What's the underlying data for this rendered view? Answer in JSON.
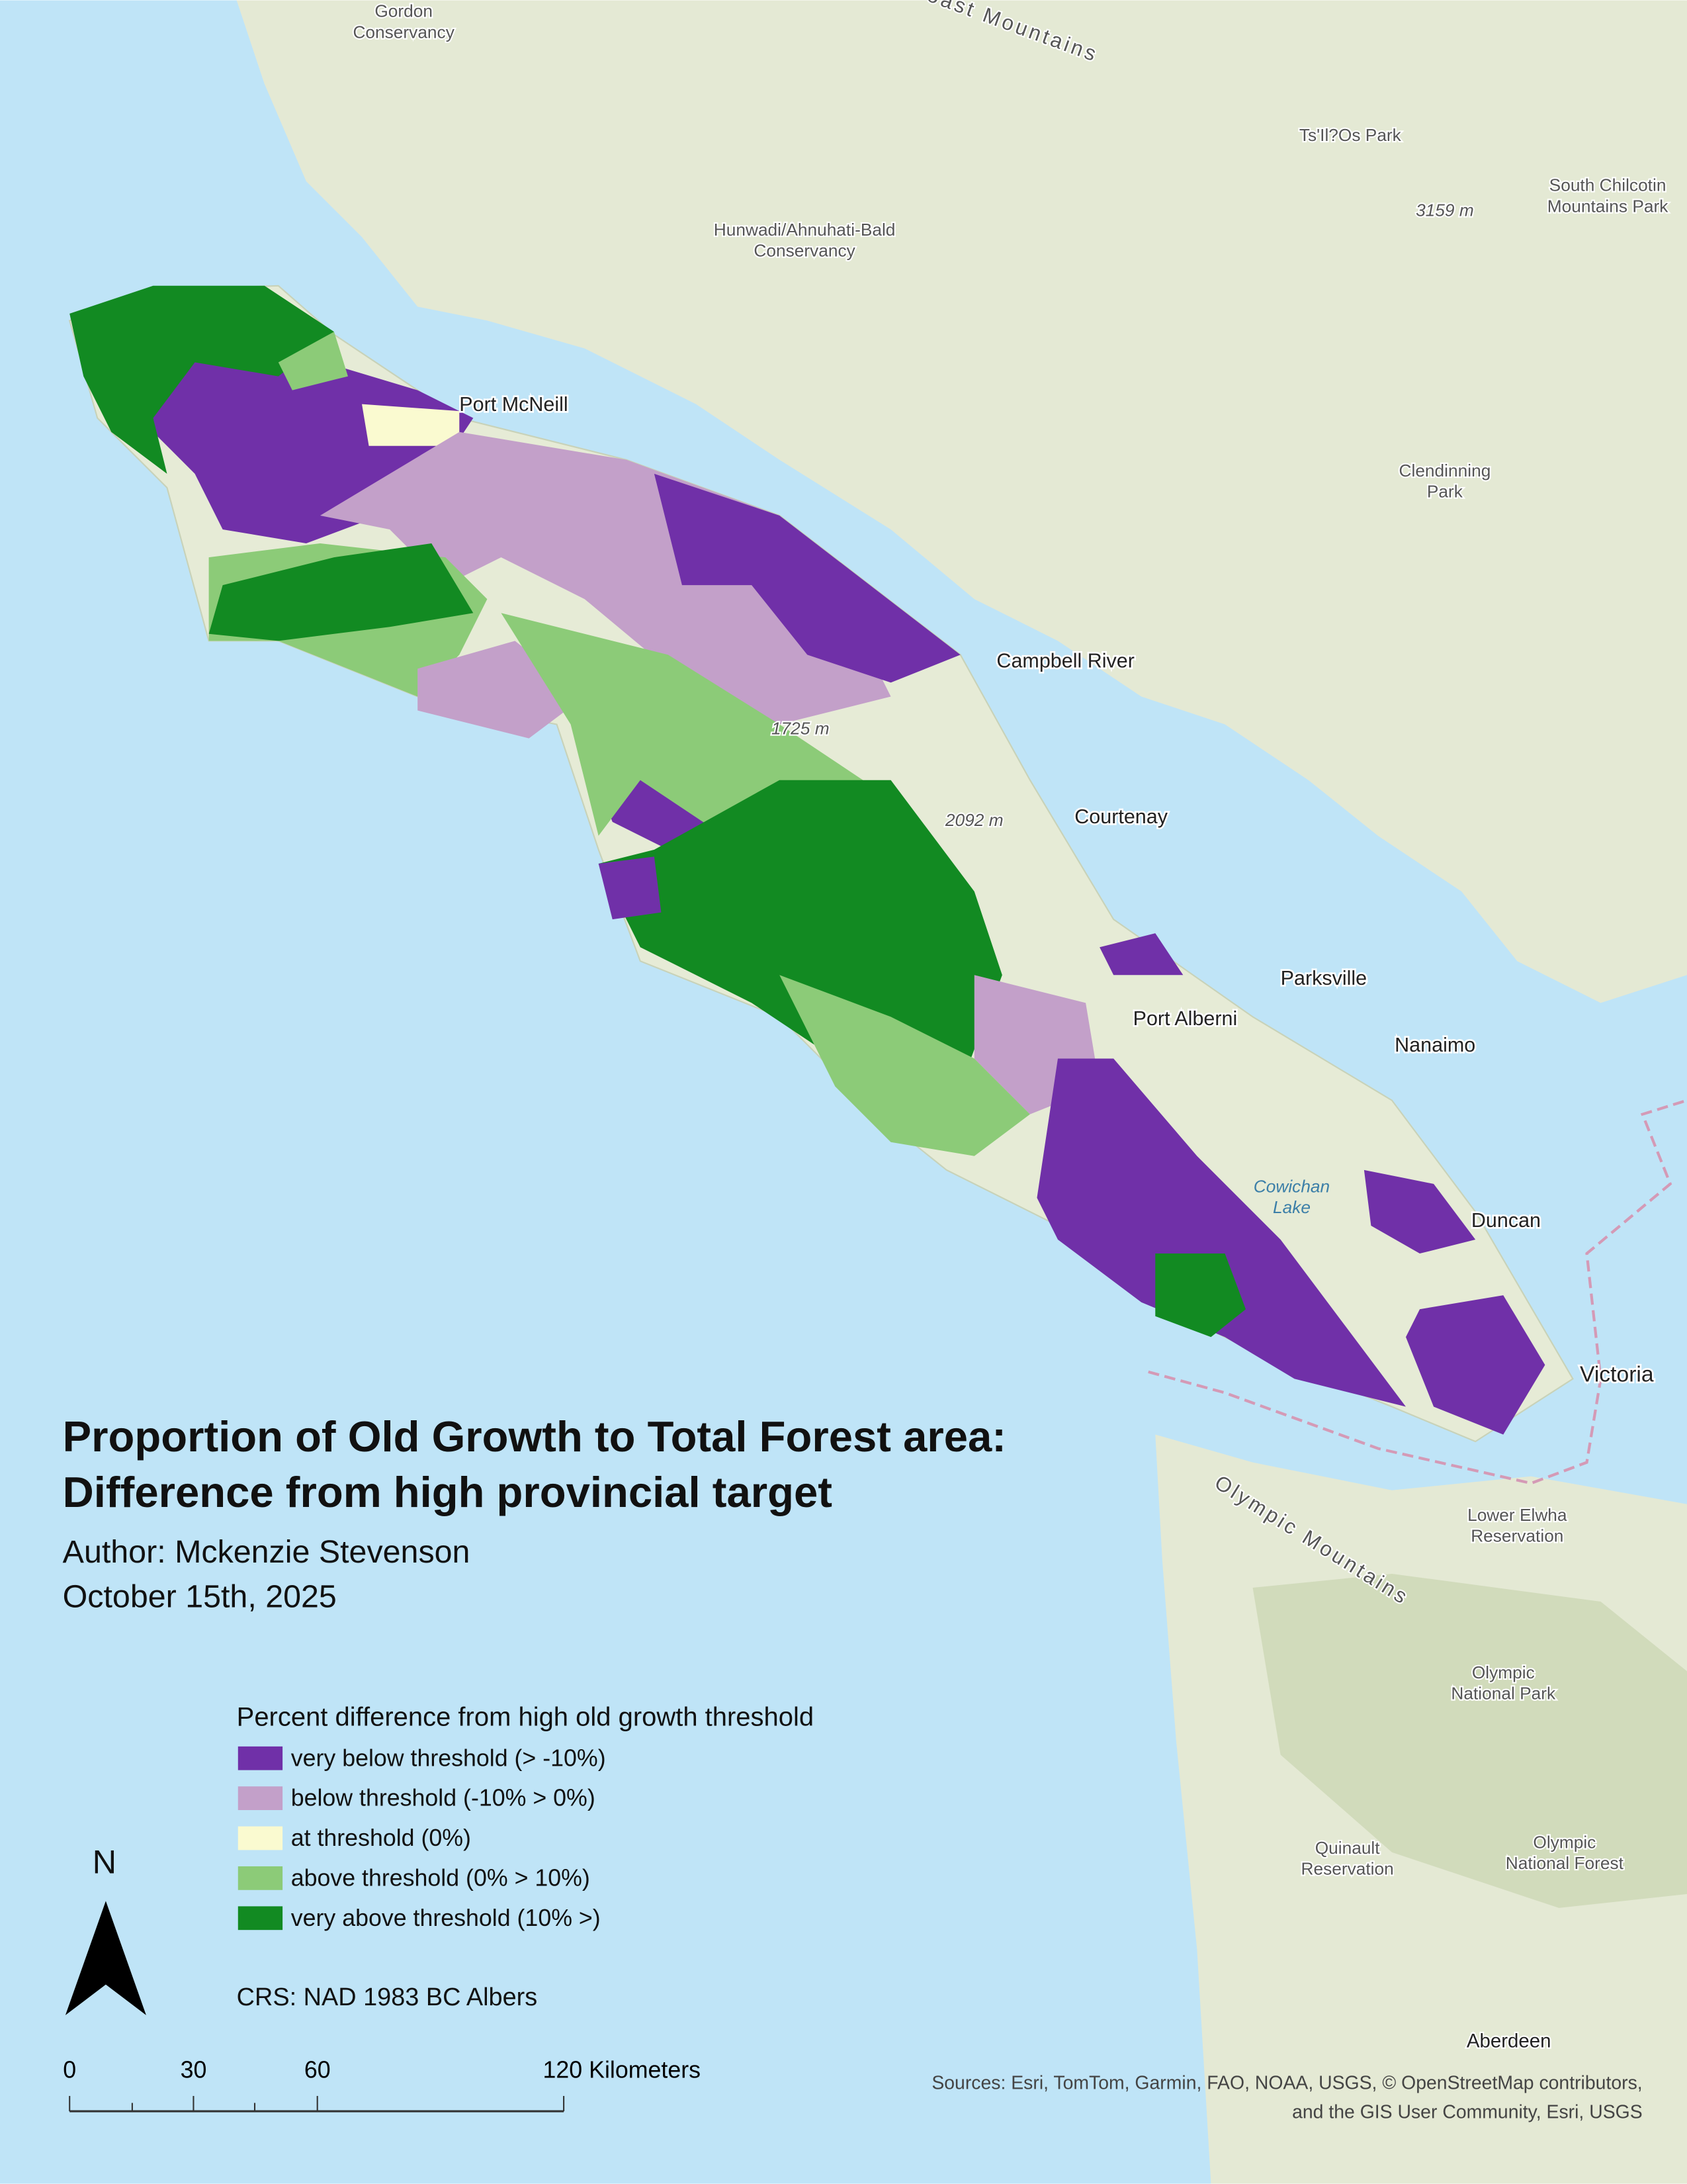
{
  "title": {
    "line1": "Proportion of Old Growth to Total Forest area:",
    "line2": "Difference from high provincial target"
  },
  "author": "Author: Mckenzie Stevenson",
  "date": "October 15th, 2025",
  "legend": {
    "title": "Percent difference from high old growth threshold",
    "items": [
      {
        "label": "very below threshold (> -10%)",
        "color": "#7030a8"
      },
      {
        "label": "below threshold (-10% > 0%)",
        "color": "#c3a0c9"
      },
      {
        "label": "at threshold (0%)",
        "color": "#fafad0"
      },
      {
        "label": "above threshold (0% > 10%)",
        "color": "#8ccb78"
      },
      {
        "label": "very above threshold (10% >)",
        "color": "#128a22"
      }
    ]
  },
  "north_arrow": "N",
  "scale_bar": [
    "0",
    "30",
    "60",
    "120 Kilometers"
  ],
  "crs": "CRS: NAD 1983 BC Albers",
  "sources": [
    "Sources: Esri, TomTom, Garmin, FAO, NOAA, USGS, © OpenStreetMap contributors,",
    "and the GIS User Community, Esri, USGS"
  ],
  "places": [
    {
      "lines": [
        "Gordon",
        "Conservancy"
      ]
    },
    {
      "lines": [
        "Coast Mountains"
      ]
    },
    {
      "lines": [
        "Ts'Il?Os Park"
      ]
    },
    {
      "lines": [
        "South Chilcotin",
        "Mountains Park"
      ]
    },
    {
      "lines": [
        "3159 m"
      ]
    },
    {
      "lines": [
        "Hunwadi/Ahnuhati-Bald",
        "Conservancy"
      ]
    },
    {
      "lines": [
        "Port McNeill"
      ]
    },
    {
      "lines": [
        "Clendinning",
        "Park"
      ]
    },
    {
      "lines": [
        "Campbell River"
      ]
    },
    {
      "lines": [
        "1725 m"
      ]
    },
    {
      "lines": [
        "2092 m"
      ]
    },
    {
      "lines": [
        "Courtenay"
      ]
    },
    {
      "lines": [
        "Parksville"
      ]
    },
    {
      "lines": [
        "Port Alberni"
      ]
    },
    {
      "lines": [
        "Nanaimo"
      ]
    },
    {
      "lines": [
        "Cowichan",
        "Lake"
      ]
    },
    {
      "lines": [
        "Duncan"
      ]
    },
    {
      "lines": [
        "Victoria"
      ]
    },
    {
      "lines": [
        "Lower Elwha",
        "Reservation"
      ]
    },
    {
      "lines": [
        "Olympic Mountains"
      ]
    },
    {
      "lines": [
        "Olympic",
        "National Park"
      ]
    },
    {
      "lines": [
        "Quinault",
        "Reservation"
      ]
    },
    {
      "lines": [
        "Olympic",
        "National Forest"
      ]
    },
    {
      "lines": [
        "Aberdeen"
      ]
    }
  ]
}
